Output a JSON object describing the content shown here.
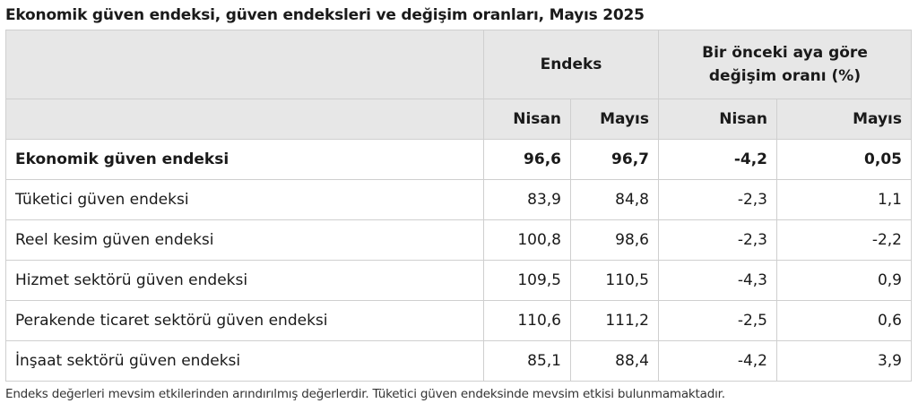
{
  "title": "Ekonomik güven endeksi, güven endeksleri ve değişim oranları, Mayıs 2025",
  "table": {
    "group_headers": {
      "index": "Endeks",
      "change_line1": "Bir önceki aya göre",
      "change_line2": "değişim oranı (%)"
    },
    "sub_headers": [
      "Nisan",
      "Mayıs",
      "Nisan",
      "Mayıs"
    ],
    "rows": [
      {
        "label": "Ekonomik güven endeksi",
        "values": [
          "96,6",
          "96,7",
          "-4,2",
          "0,05"
        ],
        "bold": true
      },
      {
        "label": "Tüketici güven endeksi",
        "values": [
          "83,9",
          "84,8",
          "-2,3",
          "1,1"
        ]
      },
      {
        "label": "Reel kesim güven endeksi",
        "values": [
          "100,8",
          "98,6",
          "-2,3",
          "-2,2"
        ]
      },
      {
        "label": "Hizmet sektörü güven endeksi",
        "values": [
          "109,5",
          "110,5",
          "-4,3",
          "0,9"
        ]
      },
      {
        "label": "Perakende ticaret sektörü güven endeksi",
        "values": [
          "110,6",
          "111,2",
          "-2,5",
          "0,6"
        ]
      },
      {
        "label": "İnşaat sektörü güven endeksi",
        "values": [
          "85,1",
          "88,4",
          "-4,2",
          "3,9"
        ]
      }
    ]
  },
  "footnote": "Endeks değerleri mevsim etkilerinden arındırılmış değerlerdir. Tüketici güven endeksinde mevsim etkisi bulunmamaktadır."
}
